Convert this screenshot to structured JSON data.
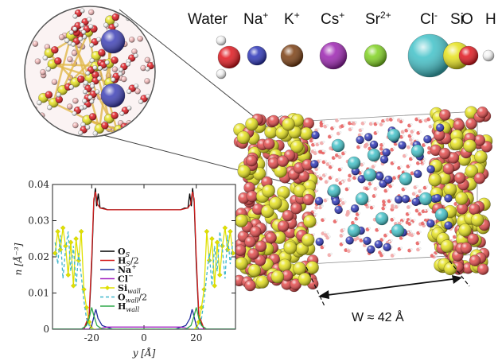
{
  "species_legend": [
    {
      "label": "Water",
      "sup": "",
      "color": "#e0141b",
      "kind": "water"
    },
    {
      "label": "Na",
      "sup": "+",
      "color": "#2a33b8",
      "kind": "sphere",
      "r": 12
    },
    {
      "label": "K",
      "sup": "+",
      "color": "#7a3d10",
      "kind": "sphere",
      "r": 14
    },
    {
      "label": "Cs",
      "sup": "+",
      "color": "#9b22b0",
      "kind": "sphere",
      "r": 17
    },
    {
      "label": "Sr",
      "sup": "2+",
      "color": "#7fd21e",
      "kind": "sphere",
      "r": 14
    },
    {
      "label": "Cl",
      "sup": "-",
      "color": "#40c1c8",
      "kind": "sphere",
      "r": 27
    },
    {
      "label": "Si",
      "sup": "",
      "color": "#e6e21a",
      "kind": "sphere",
      "r": 17
    },
    {
      "label": "O",
      "sup": "",
      "color": "#e0141b",
      "kind": "sphere",
      "r": 12
    },
    {
      "label": "H",
      "sup": "",
      "color": "#f2f2f2",
      "kind": "sphere",
      "r": 7
    }
  ],
  "colors": {
    "water_o": "#e0141b",
    "na": "#2a33b8",
    "cl": "#40c1c8",
    "si": "#e6e21a",
    "wall_o": "#e0141b"
  },
  "dimension": {
    "label": "W ≈ 42 Å"
  },
  "chart_data": {
    "type": "line",
    "xlabel": "y [Å]",
    "ylabel": "n [Å⁻³]",
    "xlim": [
      -35,
      35
    ],
    "ylim": [
      0,
      0.04
    ],
    "x_ticks": [
      "-20",
      "0",
      "20"
    ],
    "x_tick_values": [
      -20,
      0,
      20
    ],
    "y_ticks": [
      "0",
      "0.01",
      "0.02",
      "0.03",
      "0.04"
    ],
    "y_tick_values": [
      0,
      0.01,
      0.02,
      0.03,
      0.04
    ],
    "series": [
      {
        "name": "O_S",
        "label_main": "O",
        "label_sub": "S",
        "label_tail": "",
        "color": "#000000",
        "dash": "",
        "points": [
          [
            -35,
            0
          ],
          [
            -23,
            0
          ],
          [
            -21,
            0.003
          ],
          [
            -20,
            0.018
          ],
          [
            -19.2,
            0.035
          ],
          [
            -18.6,
            0.039
          ],
          [
            -18.1,
            0.034
          ],
          [
            -17.5,
            0.0375
          ],
          [
            -16.8,
            0.0335
          ],
          [
            -15.5,
            0.0335
          ],
          [
            -14,
            0.033
          ],
          [
            14,
            0.033
          ],
          [
            15.5,
            0.0335
          ],
          [
            16.8,
            0.0335
          ],
          [
            17.5,
            0.0375
          ],
          [
            18.1,
            0.034
          ],
          [
            18.6,
            0.039
          ],
          [
            19.2,
            0.035
          ],
          [
            20,
            0.018
          ],
          [
            21,
            0.003
          ],
          [
            23,
            0
          ],
          [
            35,
            0
          ]
        ]
      },
      {
        "name": "H_S/2",
        "label_main": "H",
        "label_sub": "S",
        "label_tail": "/2",
        "color": "#d42020",
        "dash": "",
        "points": [
          [
            -35,
            0
          ],
          [
            -23,
            0
          ],
          [
            -21,
            0.004
          ],
          [
            -20,
            0.02
          ],
          [
            -19.2,
            0.036
          ],
          [
            -18.5,
            0.038
          ],
          [
            -17.8,
            0.0345
          ],
          [
            -16.8,
            0.0335
          ],
          [
            -14,
            0.033
          ],
          [
            14,
            0.033
          ],
          [
            16.8,
            0.0335
          ],
          [
            17.8,
            0.0345
          ],
          [
            18.5,
            0.038
          ],
          [
            19.2,
            0.036
          ],
          [
            20,
            0.02
          ],
          [
            21,
            0.004
          ],
          [
            23,
            0
          ],
          [
            35,
            0
          ]
        ]
      },
      {
        "name": "Na+",
        "label_main": "Na",
        "label_sub": "",
        "label_tail": "+",
        "color": "#1f2a9c",
        "dash": "",
        "points": [
          [
            -35,
            0
          ],
          [
            -21,
            0
          ],
          [
            -20,
            0.001
          ],
          [
            -19,
            0.004
          ],
          [
            -18.4,
            0.0055
          ],
          [
            -17.6,
            0.003
          ],
          [
            -16,
            0.001
          ],
          [
            -12,
            0
          ],
          [
            12,
            0
          ],
          [
            16,
            0.001
          ],
          [
            17.6,
            0.003
          ],
          [
            18.4,
            0.0055
          ],
          [
            19,
            0.004
          ],
          [
            20,
            0.001
          ],
          [
            21,
            0
          ],
          [
            35,
            0
          ]
        ]
      },
      {
        "name": "Cl-",
        "label_main": "Cl",
        "label_sub": "",
        "label_tail": "−",
        "color": "#a020c0",
        "dash": "",
        "points": [
          [
            -35,
            0
          ],
          [
            -18,
            0
          ],
          [
            -16,
            0.0003
          ],
          [
            -14,
            0.0006
          ],
          [
            14,
            0.0006
          ],
          [
            16,
            0.0003
          ],
          [
            18,
            0
          ],
          [
            35,
            0
          ]
        ]
      },
      {
        "name": "Si_wall",
        "label_main": "Si",
        "label_sub": "wall",
        "label_tail": "",
        "color": "#e0e000",
        "dash": "",
        "marker": "diamond",
        "points": [
          [
            -34,
            0.021
          ],
          [
            -33,
            0.027
          ],
          [
            -32,
            0.022
          ],
          [
            -31,
            0.028
          ],
          [
            -30,
            0.023
          ],
          [
            -29,
            0.015
          ],
          [
            -28,
            0.024
          ],
          [
            -27,
            0.012
          ],
          [
            -26,
            0.025
          ],
          [
            -25,
            0.019
          ],
          [
            -24,
            0.027
          ],
          [
            -23,
            0.011
          ],
          [
            -22,
            0.006
          ],
          [
            -21,
            0.002
          ],
          [
            -20,
            0
          ],
          [
            20,
            0
          ],
          [
            21,
            0.002
          ],
          [
            22,
            0.006
          ],
          [
            23,
            0.011
          ],
          [
            24,
            0.027
          ],
          [
            25,
            0.019
          ],
          [
            26,
            0.025
          ],
          [
            27,
            0.012
          ],
          [
            28,
            0.024
          ],
          [
            29,
            0.015
          ],
          [
            30,
            0.023
          ],
          [
            31,
            0.028
          ],
          [
            32,
            0.022
          ],
          [
            33,
            0.027
          ],
          [
            34,
            0.021
          ]
        ]
      },
      {
        "name": "O_wall/2",
        "label_main": "O",
        "label_sub": "wall",
        "label_tail": "/2",
        "color": "#3fb7cc",
        "dash": "4,3",
        "points": [
          [
            -34,
            0.024
          ],
          [
            -33,
            0.018
          ],
          [
            -32,
            0.026
          ],
          [
            -31,
            0.014
          ],
          [
            -30,
            0.022
          ],
          [
            -29,
            0.027
          ],
          [
            -28,
            0.016
          ],
          [
            -27,
            0.023
          ],
          [
            -26,
            0.012
          ],
          [
            -25,
            0.021
          ],
          [
            -24,
            0.015
          ],
          [
            -23,
            0.008
          ],
          [
            -22,
            0.003
          ],
          [
            -21,
            0.001
          ],
          [
            -20,
            0
          ],
          [
            20,
            0
          ],
          [
            21,
            0.001
          ],
          [
            22,
            0.003
          ],
          [
            23,
            0.008
          ],
          [
            24,
            0.015
          ],
          [
            25,
            0.021
          ],
          [
            26,
            0.012
          ],
          [
            27,
            0.023
          ],
          [
            28,
            0.016
          ],
          [
            29,
            0.027
          ],
          [
            30,
            0.022
          ],
          [
            31,
            0.014
          ],
          [
            32,
            0.026
          ],
          [
            33,
            0.018
          ],
          [
            34,
            0.024
          ]
        ]
      },
      {
        "name": "H_wall",
        "label_main": "H",
        "label_sub": "wall",
        "label_tail": "",
        "color": "#2ea84a",
        "dash": "",
        "points": [
          [
            -35,
            0
          ],
          [
            -24,
            0
          ],
          [
            -22,
            0.001
          ],
          [
            -21,
            0.003
          ],
          [
            -20,
            0.006
          ],
          [
            -19.3,
            0.004
          ],
          [
            -18,
            0.001
          ],
          [
            -16,
            0
          ],
          [
            16,
            0
          ],
          [
            18,
            0.001
          ],
          [
            19.3,
            0.004
          ],
          [
            20,
            0.006
          ],
          [
            21,
            0.003
          ],
          [
            22,
            0.001
          ],
          [
            24,
            0
          ],
          [
            35,
            0
          ]
        ]
      }
    ]
  }
}
